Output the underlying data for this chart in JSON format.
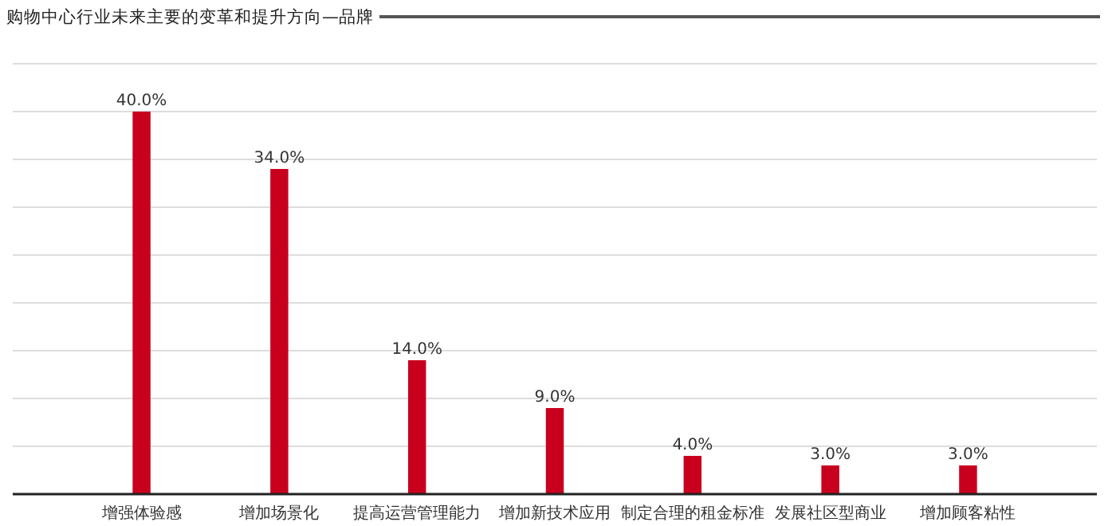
{
  "chart_data": {
    "type": "bar",
    "title": "购物中心行业未来主要的变革和提升方向—品牌",
    "categories": [
      "增强体验感",
      "增加场景化",
      "提高运营管理能力",
      "增加新技术应用",
      "制定合理的租金标准",
      "发展社区型商业",
      "增加顾客粘性"
    ],
    "values": [
      40,
      34,
      14,
      9,
      4,
      3,
      3
    ],
    "color": "#c8001e",
    "value_labels": [
      "40.0%",
      "34.0%",
      "14.0%",
      "9.0%",
      "4.0%",
      "3.0%",
      "3.0%"
    ],
    "ylim": [
      0,
      45
    ],
    "yticks": [
      {
        "value": 0,
        "label": null
      },
      {
        "value": 5,
        "label": null
      },
      {
        "value": 10,
        "label": null
      },
      {
        "value": 15,
        "label": null
      },
      {
        "value": 20,
        "label": null
      },
      {
        "value": 25,
        "label": null
      },
      {
        "value": 30,
        "label": null
      },
      {
        "value": 35,
        "label": null
      },
      {
        "value": 40,
        "label": null
      },
      {
        "value": 45,
        "label": null
      }
    ],
    "grid": "y",
    "tick_labels": "x"
  }
}
